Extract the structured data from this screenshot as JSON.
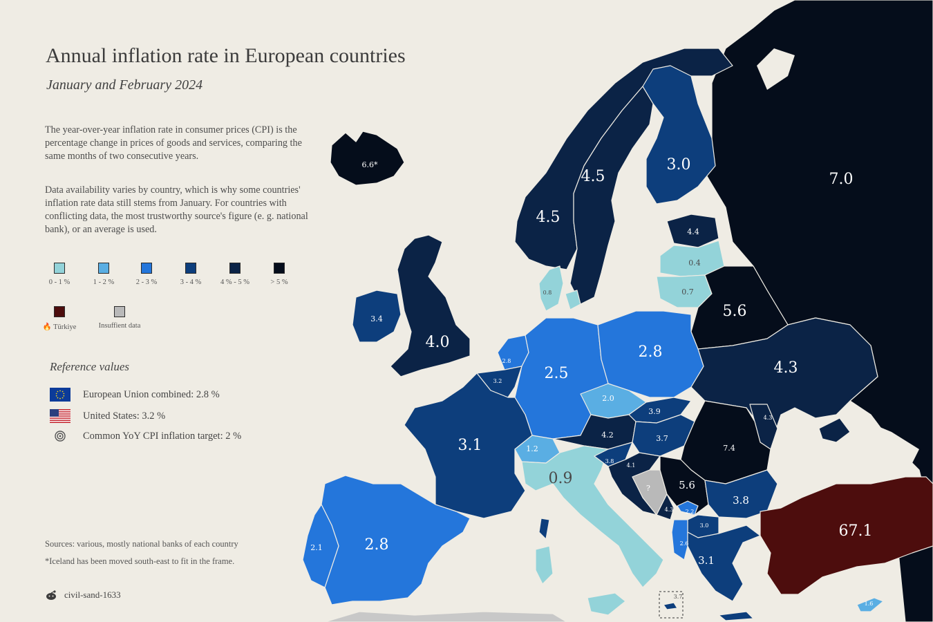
{
  "header": {
    "title": "Annual inflation rate in European countries",
    "subtitle": "January and February 2024"
  },
  "description": {
    "paragraph_1": "The year-over-year inflation rate in consumer prices (CPI) is the percentage change in prices of goods and services, comparing the same months of two consecutive years.",
    "paragraph_2": "Data availability varies by country, which is why some countries' inflation rate data still stems from January. For countries with conflicting data, the most trustworthy source's figure (e. g. national bank), or an average is used."
  },
  "legend": {
    "items": [
      {
        "label": "0 - 1 %",
        "color": "#93d3d9"
      },
      {
        "label": "1 - 2 %",
        "color": "#5aaee3"
      },
      {
        "label": "2 - 3 %",
        "color": "#2476db"
      },
      {
        "label": "3 - 4 %",
        "color": "#0d3e7c"
      },
      {
        "label": "4 % - 5 %",
        "color": "#0b2346"
      },
      {
        "label": "> 5 %",
        "color": "#050d1b"
      },
      {
        "label": "Türkiye",
        "color": "#4d0d0d"
      },
      {
        "label": "Insuffient data",
        "color": "#b9b9b9"
      }
    ]
  },
  "reference": {
    "title": "Reference values",
    "eu": "European Union combined: 2.8 %",
    "us": "United States: 3.2 %",
    "target": "Common YoY CPI inflation target: 2 %"
  },
  "footer": {
    "sources": "Sources: various, mostly national banks of each country",
    "footnote": "*Iceland has been moved south-east to fit in the frame.",
    "credit": "civil-sand-1633"
  },
  "map_values": {
    "iceland": "6.6*",
    "norway": "4.5",
    "sweden": "4.5",
    "finland": "3.0",
    "russia": "7.0",
    "estonia": "4.4",
    "latvia": "0.4",
    "lithuania": "0.7",
    "denmark": "0.8",
    "ireland": "3.4",
    "uk": "4.0",
    "netherlands": "2.8",
    "belgium": "3.2",
    "germany": "2.5",
    "poland": "2.8",
    "belarus": "5.6",
    "ukraine": "4.3",
    "moldova": "4.3",
    "czechia": "2.0",
    "slovakia": "3.9",
    "austria": "4.2",
    "hungary": "3.7",
    "romania": "7.4",
    "france": "3.1",
    "switzerland": "1.2",
    "italy": "0.9",
    "slovenia": "3.8",
    "croatia": "4.1",
    "bosnia": "?",
    "serbia": "5.6",
    "montenegro": "4.3",
    "kosovo": "2.2",
    "north_macedonia": "3.0",
    "albania": "2.6",
    "bulgaria": "3.8",
    "greece": "3.1",
    "turkey": "67.1",
    "spain": "2.8",
    "portugal": "2.1",
    "malta": "3.7",
    "cyprus": "1.6"
  }
}
